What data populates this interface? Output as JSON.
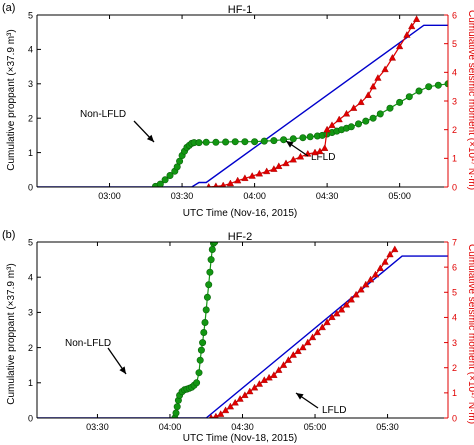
{
  "colors": {
    "proppant": "#0000cc",
    "lfld": "#e00000",
    "non_lfld": "#129612",
    "non_lfld_edge": "#0a640a",
    "axis": "#000000",
    "right_axis": "#e00000"
  },
  "chart_data": [
    {
      "type": "line",
      "panel_label": "(a)",
      "title": "HF-1",
      "xlabel": "UTC Time (Nov-16, 2015)",
      "ylabel_left": "Cumulative proppant (×37.9 m³)",
      "ylabel_right": "Cumulative seismic moment (×10¹⁷ N·m)",
      "x_unit": "minutes after 02:30",
      "xlim": [
        0,
        170
      ],
      "x_ticks": [
        30,
        60,
        90,
        120,
        150
      ],
      "x_tick_labels": [
        "03:00",
        "03:30",
        "04:00",
        "04:30",
        "05:00"
      ],
      "ylim_left": [
        0,
        5
      ],
      "y_ticks_left": [
        0,
        1,
        2,
        3,
        4,
        5
      ],
      "ylim_right": [
        0,
        6
      ],
      "y_ticks_right": [
        0,
        1,
        2,
        3,
        4,
        5,
        6
      ],
      "annotations": [
        {
          "text": "Non-LFLD",
          "series": "Non-LFLD"
        },
        {
          "text": "LFLD",
          "series": "LFLD"
        }
      ],
      "series": [
        {
          "name": "Proppant",
          "axis": "left",
          "style": "line",
          "x": [
            0,
            64,
            67,
            70,
            160,
            170
          ],
          "y": [
            0,
            0,
            0.13,
            0.13,
            4.7,
            4.7
          ]
        },
        {
          "name": "Non-LFLD",
          "axis": "right",
          "style": "circle",
          "x": [
            49,
            51,
            53,
            55,
            57,
            58,
            59,
            60,
            61,
            62,
            63,
            64,
            65,
            67,
            70,
            74,
            78,
            82,
            86,
            90,
            94,
            98,
            102,
            106,
            110,
            113,
            116,
            118,
            120,
            122,
            124,
            126,
            128,
            130,
            133,
            136,
            139,
            142,
            146,
            150,
            154,
            158,
            162,
            166,
            170
          ],
          "y": [
            0.02,
            0.1,
            0.25,
            0.4,
            0.55,
            0.7,
            0.9,
            1.1,
            1.25,
            1.38,
            1.45,
            1.52,
            1.55,
            1.55,
            1.56,
            1.56,
            1.57,
            1.58,
            1.58,
            1.58,
            1.6,
            1.62,
            1.65,
            1.68,
            1.72,
            1.75,
            1.78,
            1.8,
            1.85,
            1.9,
            1.95,
            2.0,
            2.05,
            2.1,
            2.2,
            2.3,
            2.4,
            2.55,
            2.75,
            2.95,
            3.15,
            3.35,
            3.5,
            3.55,
            3.6
          ]
        },
        {
          "name": "LFLD",
          "axis": "right",
          "style": "triangle",
          "x": [
            71,
            74,
            77,
            80,
            83,
            86,
            89,
            92,
            95,
            98,
            100,
            103,
            106,
            109,
            112,
            115,
            117,
            119,
            120,
            122,
            125,
            128,
            131,
            134,
            137,
            139,
            141,
            144,
            147,
            150,
            153,
            155,
            157
          ],
          "y": [
            0.0,
            0.02,
            0.05,
            0.12,
            0.22,
            0.3,
            0.38,
            0.46,
            0.54,
            0.62,
            0.72,
            0.82,
            0.95,
            1.05,
            1.15,
            1.2,
            1.24,
            1.35,
            2.0,
            2.15,
            2.35,
            2.55,
            2.75,
            2.95,
            3.2,
            3.5,
            3.8,
            4.1,
            4.5,
            4.9,
            5.3,
            5.6,
            5.85
          ]
        }
      ]
    },
    {
      "type": "line",
      "panel_label": "(b)",
      "title": "HF-2",
      "xlabel": "UTC Time (Nov-18, 2015)",
      "ylabel_left": "Cumulative proppant (×37.9 m³)",
      "ylabel_right": "Cumulative seismic moment (×10¹⁷ N·m)",
      "x_unit": "minutes after 03:05",
      "xlim": [
        0,
        170
      ],
      "x_ticks": [
        25,
        55,
        85,
        115,
        145
      ],
      "x_tick_labels": [
        "03:30",
        "04:00",
        "04:30",
        "05:00",
        "05:30"
      ],
      "ylim_left": [
        0,
        5
      ],
      "y_ticks_left": [
        0,
        1,
        2,
        3,
        4,
        5
      ],
      "ylim_right": [
        0,
        7
      ],
      "y_ticks_right": [
        0,
        1,
        2,
        3,
        4,
        5,
        6,
        7
      ],
      "annotations": [
        {
          "text": "Non-LFLD",
          "series": "Non-LFLD"
        },
        {
          "text": "LFLD",
          "series": "LFLD"
        }
      ],
      "series": [
        {
          "name": "Proppant",
          "axis": "left",
          "style": "line",
          "x": [
            0,
            70,
            151,
            170
          ],
          "y": [
            0,
            0,
            4.6,
            4.6
          ]
        },
        {
          "name": "Non-LFLD",
          "axis": "right",
          "style": "circle",
          "x": [
            57,
            57.5,
            58,
            58.5,
            59,
            60,
            61,
            62,
            63,
            64,
            65,
            66,
            67,
            67.5,
            68,
            68.5,
            69,
            69.5,
            70,
            70.5,
            71,
            71.5,
            72,
            72.5,
            73,
            73.5
          ],
          "y": [
            0.0,
            0.2,
            0.45,
            0.7,
            0.9,
            1.05,
            1.12,
            1.15,
            1.18,
            1.22,
            1.3,
            1.4,
            1.8,
            2.3,
            2.7,
            3.0,
            3.4,
            3.8,
            4.3,
            4.8,
            5.3,
            5.8,
            6.3,
            6.7,
            6.95,
            7.0
          ]
        },
        {
          "name": "LFLD",
          "axis": "right",
          "style": "triangle",
          "x": [
            72,
            74,
            76,
            78,
            80,
            82,
            84,
            86,
            88,
            90,
            92,
            94,
            96,
            98,
            100,
            102,
            104,
            106,
            108,
            110,
            112,
            114,
            116,
            118,
            120,
            122,
            124,
            126,
            128,
            130,
            132,
            134,
            136,
            138,
            140,
            142,
            144,
            146,
            148
          ],
          "y": [
            0.0,
            0.05,
            0.15,
            0.3,
            0.45,
            0.6,
            0.75,
            0.9,
            1.05,
            1.2,
            1.35,
            1.5,
            1.6,
            1.7,
            1.9,
            2.1,
            2.3,
            2.5,
            2.65,
            2.8,
            3.0,
            3.2,
            3.4,
            3.6,
            3.8,
            4.0,
            4.15,
            4.3,
            4.5,
            4.7,
            4.9,
            5.1,
            5.3,
            5.5,
            5.7,
            5.95,
            6.2,
            6.5,
            6.7
          ]
        }
      ]
    }
  ]
}
